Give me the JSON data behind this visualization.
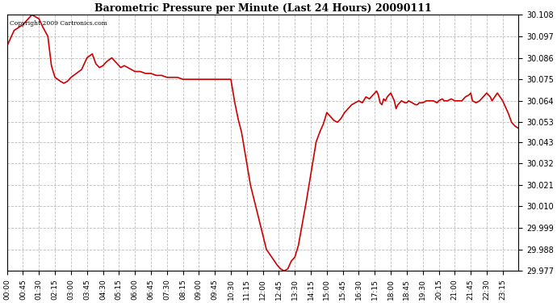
{
  "title": "Barometric Pressure per Minute (Last 24 Hours) 20090111",
  "copyright": "Copyright 2009 Cartronics.com",
  "line_color": "#cc0000",
  "background_color": "#ffffff",
  "grid_color": "#bbbbbb",
  "ylim": [
    29.977,
    30.108
  ],
  "yticks": [
    29.977,
    29.988,
    29.999,
    30.01,
    30.021,
    30.032,
    30.043,
    30.053,
    30.064,
    30.075,
    30.086,
    30.097,
    30.108
  ],
  "xtick_labels": [
    "00:00",
    "00:45",
    "01:30",
    "02:15",
    "03:00",
    "03:45",
    "04:30",
    "05:15",
    "06:00",
    "06:45",
    "07:30",
    "08:15",
    "09:00",
    "09:45",
    "10:30",
    "11:15",
    "12:00",
    "12:45",
    "13:30",
    "14:15",
    "15:00",
    "15:45",
    "16:30",
    "17:15",
    "18:00",
    "18:45",
    "19:30",
    "20:15",
    "21:00",
    "21:45",
    "22:30",
    "23:15"
  ],
  "keypoints": [
    [
      0,
      30.092
    ],
    [
      20,
      30.1
    ],
    [
      45,
      30.103
    ],
    [
      70,
      30.108
    ],
    [
      90,
      30.106
    ],
    [
      100,
      30.102
    ],
    [
      115,
      30.097
    ],
    [
      125,
      30.082
    ],
    [
      135,
      30.076
    ],
    [
      150,
      30.074
    ],
    [
      160,
      30.073
    ],
    [
      170,
      30.074
    ],
    [
      180,
      30.076
    ],
    [
      195,
      30.078
    ],
    [
      210,
      30.08
    ],
    [
      225,
      30.086
    ],
    [
      240,
      30.088
    ],
    [
      250,
      30.083
    ],
    [
      260,
      30.081
    ],
    [
      270,
      30.082
    ],
    [
      280,
      30.084
    ],
    [
      295,
      30.086
    ],
    [
      310,
      30.083
    ],
    [
      320,
      30.081
    ],
    [
      330,
      30.082
    ],
    [
      340,
      30.081
    ],
    [
      350,
      30.08
    ],
    [
      360,
      30.079
    ],
    [
      375,
      30.079
    ],
    [
      390,
      30.078
    ],
    [
      405,
      30.078
    ],
    [
      420,
      30.077
    ],
    [
      435,
      30.077
    ],
    [
      450,
      30.076
    ],
    [
      465,
      30.076
    ],
    [
      480,
      30.076
    ],
    [
      495,
      30.075
    ],
    [
      510,
      30.075
    ],
    [
      520,
      30.075
    ],
    [
      530,
      30.075
    ],
    [
      540,
      30.075
    ],
    [
      555,
      30.075
    ],
    [
      565,
      30.075
    ],
    [
      575,
      30.075
    ],
    [
      585,
      30.075
    ],
    [
      600,
      30.075
    ],
    [
      610,
      30.075
    ],
    [
      620,
      30.075
    ],
    [
      630,
      30.075
    ],
    [
      640,
      30.064
    ],
    [
      650,
      30.055
    ],
    [
      660,
      30.048
    ],
    [
      675,
      30.032
    ],
    [
      685,
      30.021
    ],
    [
      700,
      30.01
    ],
    [
      715,
      29.999
    ],
    [
      730,
      29.988
    ],
    [
      745,
      29.984
    ],
    [
      760,
      29.98
    ],
    [
      770,
      29.978
    ],
    [
      780,
      29.977
    ],
    [
      790,
      29.978
    ],
    [
      800,
      29.982
    ],
    [
      810,
      29.984
    ],
    [
      820,
      29.99
    ],
    [
      830,
      30.0
    ],
    [
      840,
      30.01
    ],
    [
      850,
      30.021
    ],
    [
      860,
      30.032
    ],
    [
      870,
      30.043
    ],
    [
      880,
      30.048
    ],
    [
      890,
      30.052
    ],
    [
      900,
      30.058
    ],
    [
      910,
      30.056
    ],
    [
      920,
      30.054
    ],
    [
      930,
      30.053
    ],
    [
      940,
      30.055
    ],
    [
      950,
      30.058
    ],
    [
      960,
      30.06
    ],
    [
      970,
      30.062
    ],
    [
      980,
      30.063
    ],
    [
      990,
      30.064
    ],
    [
      1000,
      30.063
    ],
    [
      1010,
      30.066
    ],
    [
      1020,
      30.065
    ],
    [
      1030,
      30.067
    ],
    [
      1035,
      30.068
    ],
    [
      1040,
      30.069
    ],
    [
      1045,
      30.067
    ],
    [
      1050,
      30.063
    ],
    [
      1055,
      30.062
    ],
    [
      1060,
      30.065
    ],
    [
      1065,
      30.064
    ],
    [
      1070,
      30.066
    ],
    [
      1080,
      30.068
    ],
    [
      1090,
      30.064
    ],
    [
      1095,
      30.06
    ],
    [
      1100,
      30.062
    ],
    [
      1110,
      30.064
    ],
    [
      1120,
      30.063
    ],
    [
      1125,
      30.063
    ],
    [
      1130,
      30.064
    ],
    [
      1140,
      30.063
    ],
    [
      1150,
      30.062
    ],
    [
      1155,
      30.062
    ],
    [
      1160,
      30.063
    ],
    [
      1170,
      30.063
    ],
    [
      1180,
      30.064
    ],
    [
      1185,
      30.064
    ],
    [
      1200,
      30.064
    ],
    [
      1210,
      30.063
    ],
    [
      1215,
      30.064
    ],
    [
      1225,
      30.065
    ],
    [
      1230,
      30.064
    ],
    [
      1240,
      30.064
    ],
    [
      1250,
      30.065
    ],
    [
      1260,
      30.064
    ],
    [
      1270,
      30.064
    ],
    [
      1280,
      30.064
    ],
    [
      1290,
      30.066
    ],
    [
      1300,
      30.067
    ],
    [
      1305,
      30.068
    ],
    [
      1310,
      30.064
    ],
    [
      1320,
      30.063
    ],
    [
      1330,
      30.064
    ],
    [
      1350,
      30.068
    ],
    [
      1360,
      30.066
    ],
    [
      1365,
      30.064
    ],
    [
      1380,
      30.068
    ],
    [
      1395,
      30.064
    ],
    [
      1410,
      30.058
    ],
    [
      1420,
      30.053
    ],
    [
      1430,
      30.051
    ],
    [
      1439,
      30.05
    ]
  ]
}
